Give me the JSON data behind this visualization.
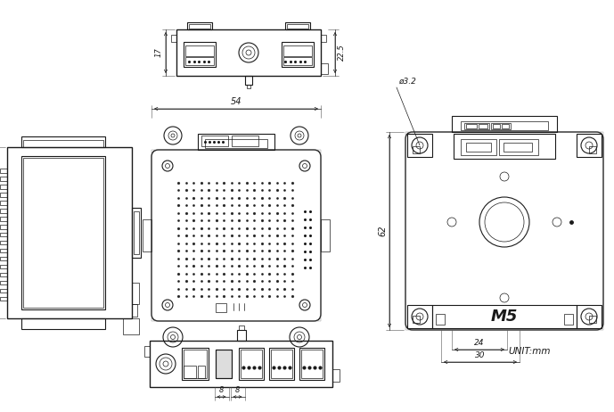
{
  "bg_color": "#ffffff",
  "line_color": "#1a1a1a",
  "fig_width": 6.89,
  "fig_height": 4.62,
  "dpi": 100,
  "unit_text": "UNIT:mm",
  "dim_labels": {
    "top_width": "17",
    "top_height": "22.5",
    "front_width": "54",
    "side_height": "54",
    "right_height": "62",
    "right_dim1": "24",
    "right_dim2": "30",
    "right_hole": "ø3.2",
    "bottom_dim1": "8",
    "bottom_dim2": "8"
  }
}
